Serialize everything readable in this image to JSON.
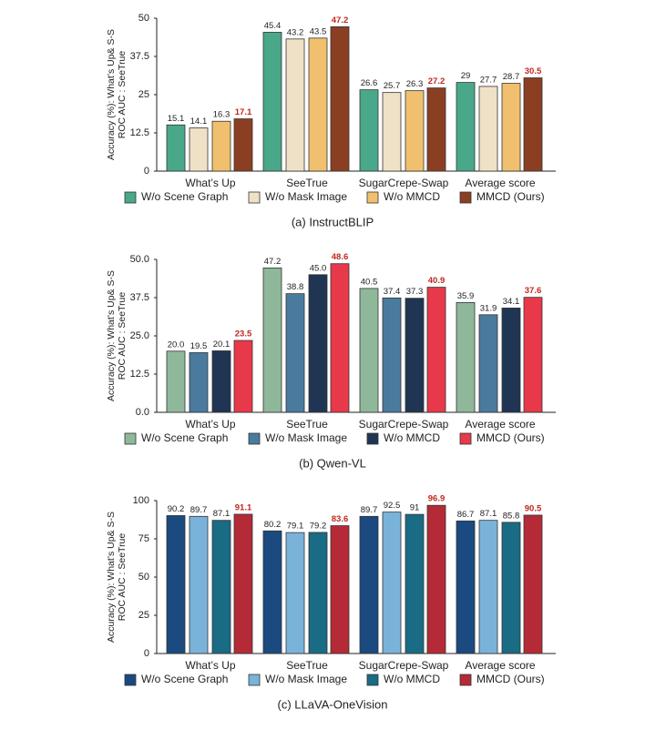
{
  "chart_data": [
    {
      "type": "bar",
      "title": "(a) InstructBLIP",
      "ylabel": [
        "Accuracy (%): What’s Up& S-S",
        "ROC AUC : SeeTrue"
      ],
      "categories": [
        "What’s Up",
        "SeeTrue",
        "SugarCrepe-Swap",
        "Average score"
      ],
      "ylim": [
        0,
        50
      ],
      "yticks": [
        0,
        12.5,
        25,
        37.5,
        50
      ],
      "series": [
        {
          "name": "W/o Scene Graph",
          "color": "#4aa88a",
          "values": [
            15.1,
            45.4,
            26.6,
            29
          ]
        },
        {
          "name": "W/o Mask Image",
          "color": "#efe1c6",
          "values": [
            14.1,
            43.2,
            25.7,
            27.7
          ]
        },
        {
          "name": "W/o MMCD",
          "color": "#f0c06e",
          "values": [
            16.3,
            43.5,
            26.3,
            28.7
          ]
        },
        {
          "name": "MMCD (Ours)",
          "color": "#8a3f22",
          "values": [
            17.1,
            47.2,
            27.2,
            30.5
          ],
          "label_color": "#c0271f"
        }
      ]
    },
    {
      "type": "bar",
      "title": "(b) Qwen-VL",
      "ylabel": [
        "Accuracy (%): What’s Up& S-S",
        "ROC AUC : SeeTrue"
      ],
      "categories": [
        "What’s Up",
        "SeeTrue",
        "SugarCrepe-Swap",
        "Average score"
      ],
      "ylim": [
        0,
        50
      ],
      "yticks": [
        {
          "value": 0,
          "label": "0.0"
        },
        12.5,
        {
          "value": 25,
          "label": "25.0"
        },
        37.5,
        {
          "value": 50,
          "label": "50.0"
        }
      ],
      "series": [
        {
          "name": "W/o Scene Graph",
          "color": "#8fb89b",
          "values": [
            20.0,
            47.2,
            40.5,
            35.9
          ],
          "value_labels": [
            "20.0",
            "47.2",
            "40.5",
            "35.9"
          ]
        },
        {
          "name": "W/o Mask Image",
          "color": "#4a7a9e",
          "values": [
            19.5,
            38.8,
            37.4,
            31.9
          ],
          "value_labels": [
            "19.5",
            "38.8",
            "37.4",
            "31.9"
          ]
        },
        {
          "name": "W/o MMCD",
          "color": "#1f3553",
          "values": [
            20.1,
            45.0,
            37.3,
            34.1
          ],
          "value_labels": [
            "20.1",
            "45.0",
            "37.3",
            "34.1"
          ]
        },
        {
          "name": "MMCD (Ours)",
          "color": "#e8394a",
          "values": [
            23.5,
            48.6,
            40.9,
            37.6
          ],
          "value_labels": [
            "23.5",
            "48.6",
            "40.9",
            "37.6"
          ],
          "label_color": "#c0271f"
        }
      ]
    },
    {
      "type": "bar",
      "title": "(c) LLaVA-OneVision",
      "ylabel": [
        "Accuracy (%): What’s Up& S-S",
        "ROC AUC : SeeTrue"
      ],
      "categories": [
        "What’s Up",
        "SeeTrue",
        "SugarCrepe-Swap",
        "Average score"
      ],
      "ylim": [
        0,
        100
      ],
      "yticks": [
        0,
        25,
        50,
        75,
        100
      ],
      "series": [
        {
          "name": "W/o Scene Graph",
          "color": "#1a4a80",
          "values": [
            90.2,
            80.2,
            89.7,
            86.7
          ]
        },
        {
          "name": "W/o Mask Image",
          "color": "#7ab3d9",
          "values": [
            89.7,
            79.1,
            92.5,
            87.1
          ]
        },
        {
          "name": "W/o MMCD",
          "color": "#1a6b84",
          "values": [
            87.1,
            79.2,
            91,
            85.8
          ]
        },
        {
          "name": "MMCD (Ours)",
          "color": "#b52a37",
          "values": [
            91.1,
            83.6,
            96.9,
            90.5
          ],
          "label_color": "#c0271f"
        }
      ]
    }
  ]
}
